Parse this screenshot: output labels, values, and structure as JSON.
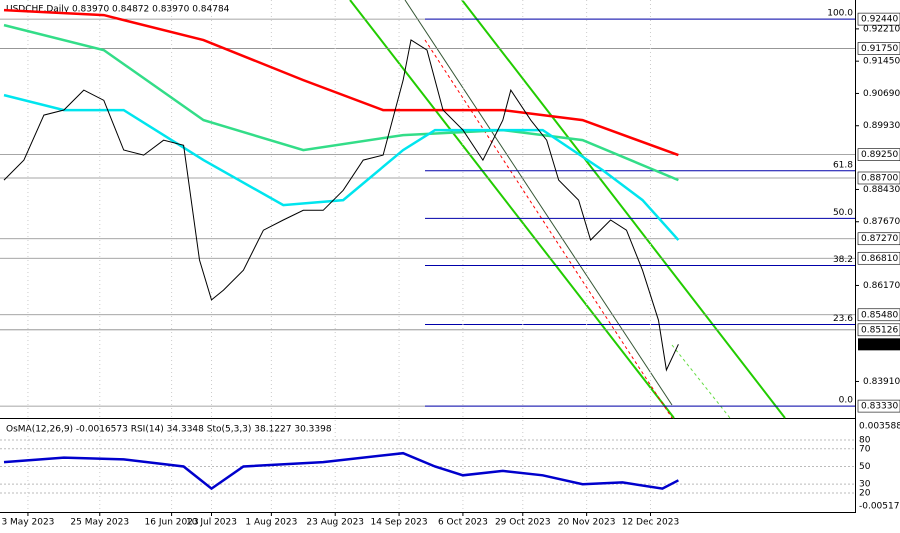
{
  "chart_data": [
    {
      "type": "line",
      "title": "USDCHF,Daily  0.83970 0.84872 0.83970 0.84784",
      "xlim": [
        -0.5,
        213
      ],
      "xticks": [
        {
          "value": 6,
          "label": "3 May 2023"
        },
        {
          "value": 24,
          "label": "25 May 2023"
        },
        {
          "value": 42,
          "label": "16 Jun 2023"
        },
        {
          "value": 52,
          "label": "10 Jul 2023"
        },
        {
          "value": 67,
          "label": "1 Aug 2023"
        },
        {
          "value": 83,
          "label": "23 Aug 2023"
        },
        {
          "value": 99,
          "label": "14 Sep 2023"
        },
        {
          "value": 115,
          "label": "6 Oct 2023"
        },
        {
          "value": 130,
          "label": "29 Oct 2023"
        },
        {
          "value": 146,
          "label": "20 Nov 2023"
        },
        {
          "value": 162,
          "label": "12 Dec 2023"
        }
      ],
      "ylim": [
        0.8305,
        0.9289
      ],
      "yticks": [
        {
          "value": 0.9221,
          "label": "0.92210"
        },
        {
          "value": 0.9145,
          "label": "0.91450"
        },
        {
          "value": 0.9069,
          "label": "0.90690"
        },
        {
          "value": 0.8993,
          "label": "0.89930"
        },
        {
          "value": 0.8843,
          "label": "0.88430"
        },
        {
          "value": 0.8767,
          "label": "0.87670"
        },
        {
          "value": 0.8617,
          "label": "0.86170"
        },
        {
          "value": 0.8391,
          "label": "0.83910"
        }
      ],
      "price_levels": [
        {
          "value": 0.9244,
          "label": "0.92440"
        },
        {
          "value": 0.9175,
          "label": "0.91750"
        },
        {
          "value": 0.8925,
          "label": "0.89250"
        },
        {
          "value": 0.887,
          "label": "0.88700"
        },
        {
          "value": 0.8727,
          "label": "0.87270"
        },
        {
          "value": 0.8681,
          "label": "0.86810"
        },
        {
          "value": 0.8548,
          "label": "0.85480"
        },
        {
          "value": 0.85126,
          "label": "0.85126"
        },
        {
          "value": 0.8333,
          "label": "0.83330"
        }
      ],
      "last_price": 0.84784,
      "fib_levels": [
        {
          "value": 0.9244,
          "label": "100.0"
        },
        {
          "value": 0.8887,
          "label": "61.8"
        },
        {
          "value": 0.8775,
          "label": "50.0"
        },
        {
          "value": 0.8664,
          "label": "38.2"
        },
        {
          "value": 0.8525,
          "label": "23.6"
        },
        {
          "value": 0.8333,
          "label": "0.0"
        }
      ],
      "fib_color": "#0000aa",
      "series": [
        {
          "color": "#ff0000",
          "x": [
            0,
            25,
            50,
            75,
            95,
            125,
            145,
            169
          ],
          "values": [
            0.92652,
            0.92534,
            0.91946,
            0.91004,
            0.90298,
            0.90298,
            0.90062,
            0.89238
          ]
        },
        {
          "color": "#33dd88",
          "x": [
            0,
            25,
            50,
            75,
            100,
            125,
            145,
            169
          ],
          "values": [
            0.92299,
            0.9171,
            0.90062,
            0.89356,
            0.89709,
            0.89827,
            0.89592,
            0.8865
          ]
        },
        {
          "color": "#00e5ee",
          "x": [
            0,
            15,
            30,
            50,
            70,
            85,
            100,
            108,
            120,
            135,
            150,
            160,
            169
          ],
          "values": [
            0.90651,
            0.90298,
            0.90298,
            0.89121,
            0.88061,
            0.88179,
            0.89356,
            0.89827,
            0.89827,
            0.89827,
            0.88885,
            0.88179,
            0.87238
          ]
        },
        {
          "color": "#000000",
          "x": [
            0,
            5,
            10,
            15,
            20,
            25,
            30,
            35,
            40,
            45,
            49,
            52,
            55,
            60,
            65,
            70,
            75,
            80,
            85,
            90,
            95,
            100,
            102,
            106,
            110,
            115,
            120,
            125,
            127,
            132,
            136,
            139,
            144,
            147,
            152,
            156,
            160,
            164,
            166,
            169
          ],
          "values": [
            0.8865,
            0.8912,
            0.9018,
            0.903,
            0.9077,
            0.9053,
            0.8936,
            0.8924,
            0.8959,
            0.8947,
            0.8677,
            0.8583,
            0.8606,
            0.8653,
            0.8747,
            0.8771,
            0.8794,
            0.8794,
            0.8841,
            0.8912,
            0.8924,
            0.91,
            0.9195,
            0.9171,
            0.903,
            0.8983,
            0.8912,
            0.9006,
            0.9077,
            0.9006,
            0.8959,
            0.8865,
            0.8818,
            0.8724,
            0.8771,
            0.8747,
            0.8653,
            0.8535,
            0.8418,
            0.84784
          ]
        }
      ]
    },
    {
      "type": "line",
      "title": "OsMA(12,26,9) -0.0016573  RSI(14) 34.3348  Sto(5,3,3) 38.1227 30.3398",
      "xlim": [
        -0.5,
        213
      ],
      "ylim": [
        -1.5,
        102.6
      ],
      "yticks": [
        80,
        70,
        50,
        30,
        20
      ],
      "osma_range": [
        {
          "value": 0.003588,
          "label": "0.003588"
        },
        {
          "value": -0.005173,
          "label": "-0.005173"
        }
      ],
      "series": [
        {
          "color": "#0000cc",
          "x": [
            0,
            15,
            30,
            45,
            52,
            60,
            80,
            100,
            108,
            115,
            125,
            135,
            145,
            155,
            165,
            169
          ],
          "values": [
            55,
            60,
            58,
            50,
            25,
            50,
            55,
            65,
            50,
            40,
            45,
            40,
            30,
            32,
            25,
            34.3348
          ]
        }
      ]
    }
  ]
}
